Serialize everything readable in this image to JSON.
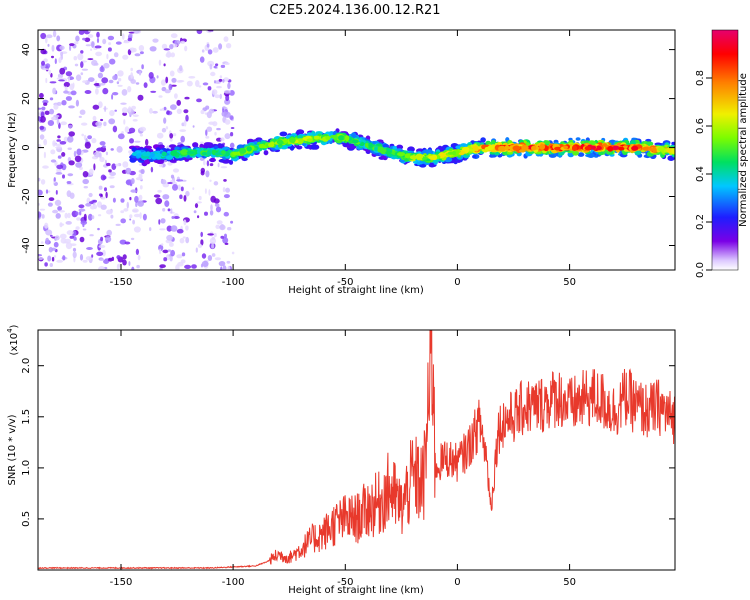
{
  "title": "C2E5.2024.136.00.12.R21",
  "chart_data": [
    {
      "type": "heatmap",
      "xlabel": "Height of straight line (km)",
      "ylabel": "Frequency (Hz)",
      "xlim": [
        -187,
        97
      ],
      "ylim": [
        -50,
        48
      ],
      "xticks": [
        -150,
        -100,
        -50,
        0,
        50
      ],
      "yticks": [
        -40,
        -20,
        0,
        20,
        40
      ],
      "colorbar": {
        "label": "Normalized spectral amplitude",
        "range": [
          0,
          1
        ],
        "ticks": [
          0.0,
          0.2,
          0.4,
          0.6,
          0.8
        ],
        "colormap": [
          "#ffffff",
          "#dcc8ff",
          "#7a00e6",
          "#1e1eff",
          "#00c8ff",
          "#00e060",
          "#7cfc00",
          "#f0f000",
          "#ff8000",
          "#ff0000",
          "#e6006e"
        ]
      },
      "ridge": {
        "x": [
          -145,
          -130,
          -120,
          -110,
          -100,
          -90,
          -80,
          -70,
          -60,
          -50,
          -40,
          -30,
          -20,
          -10,
          0,
          10,
          20,
          30,
          40,
          50,
          60,
          70,
          80,
          90,
          97
        ],
        "frequency_hz": [
          -3,
          -3,
          -2,
          -2,
          -3,
          0,
          2,
          3,
          4,
          4,
          1,
          -2,
          -4,
          -4,
          -2,
          0,
          0,
          0,
          0,
          0,
          0,
          0,
          0,
          -1,
          -1
        ],
        "amplitude": [
          0.35,
          0.4,
          0.45,
          0.45,
          0.5,
          0.5,
          0.55,
          0.55,
          0.55,
          0.5,
          0.45,
          0.5,
          0.55,
          0.6,
          0.6,
          0.7,
          0.8,
          0.85,
          0.8,
          0.8,
          0.85,
          0.85,
          0.8,
          0.7,
          0.6
        ]
      },
      "noise_region_x": [
        -187,
        -100
      ],
      "grid": false
    },
    {
      "type": "line",
      "xlabel": "Height of straight line (km)",
      "ylabel": "SNR (10 * v/v)",
      "y_multiplier": "(x10",
      "y_multiplier_exp": "4",
      "y_multiplier_close": ")",
      "xlim": [
        -187,
        97
      ],
      "ylim": [
        0,
        2.35
      ],
      "xticks": [
        -150,
        -100,
        -50,
        0,
        50
      ],
      "yticks": [
        0.5,
        1.0,
        1.5,
        2.0
      ],
      "color": "#e8392c",
      "grid": false,
      "series": [
        {
          "x": [
            -187,
            -170,
            -150,
            -130,
            -110,
            -100,
            -90,
            -85,
            -80,
            -75,
            -70,
            -65,
            -60,
            -55,
            -50,
            -45,
            -40,
            -35,
            -30,
            -25,
            -20,
            -15,
            -11,
            -10,
            -5,
            0,
            5,
            10,
            13,
            15,
            18,
            20,
            25,
            30,
            35,
            40,
            45,
            50,
            55,
            60,
            65,
            70,
            75,
            80,
            85,
            90,
            95,
            97
          ],
          "values": [
            0.02,
            0.02,
            0.02,
            0.02,
            0.02,
            0.03,
            0.04,
            0.08,
            0.15,
            0.12,
            0.2,
            0.3,
            0.35,
            0.45,
            0.5,
            0.5,
            0.6,
            0.65,
            0.8,
            0.6,
            0.9,
            0.85,
            2.35,
            1.0,
            1.1,
            1.05,
            1.2,
            1.45,
            1.1,
            0.6,
            1.35,
            1.45,
            1.5,
            1.6,
            1.6,
            1.65,
            1.7,
            1.6,
            1.65,
            1.7,
            1.65,
            1.55,
            1.7,
            1.6,
            1.55,
            1.6,
            1.5,
            1.5
          ]
        }
      ]
    }
  ]
}
